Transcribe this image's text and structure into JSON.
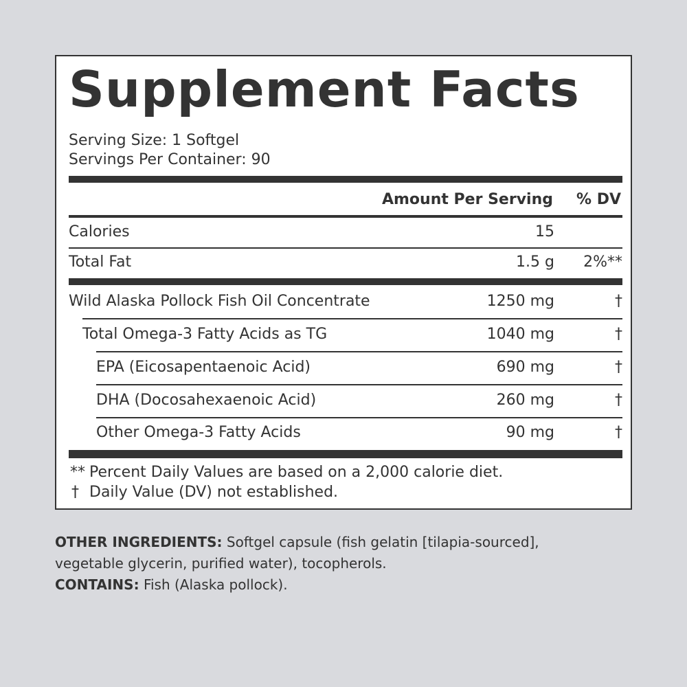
{
  "label": {
    "title": "Supplement Facts",
    "serving_size": "Serving Size: 1 Softgel",
    "servings_per_container": "Servings Per Container: 90",
    "header": {
      "amount": "Amount Per Serving",
      "dv": "% DV"
    },
    "rows": [
      {
        "name": "Calories",
        "amount": "15"
      },
      {
        "name": "Total Fat",
        "amount": "1.5 g",
        "dv": "2%**"
      },
      {
        "name": "Wild Alaska Pollock Fish Oil Concentrate",
        "amount": "1250 mg",
        "dv": "†"
      },
      {
        "name": "Total Omega-3 Fatty Acids as TG",
        "amount": "1040 mg",
        "dv": "†"
      },
      {
        "name": "EPA (Eicosapentaenoic Acid)",
        "amount": "690 mg",
        "dv": "†"
      },
      {
        "name": "DHA (Docosahexaenoic Acid)",
        "amount": "260 mg",
        "dv": "†"
      },
      {
        "name": "Other Omega-3 Fatty Acids",
        "amount": "90 mg",
        "dv": "†"
      }
    ],
    "footnotes": [
      {
        "mark": "**",
        "text": "Percent Daily Values are based on a 2,000 calorie diet."
      },
      {
        "mark": "†",
        "text": "Daily Value (DV) not established."
      }
    ]
  },
  "other_ingredients": {
    "label": "OTHER INGREDIENTS:",
    "text": "Softgel capsule (fish gelatin [tilapia-sourced], vegetable glycerin, purified water), tocopherols."
  },
  "contains": {
    "label": "CONTAINS:",
    "text": "Fish (Alaska pollock)."
  }
}
